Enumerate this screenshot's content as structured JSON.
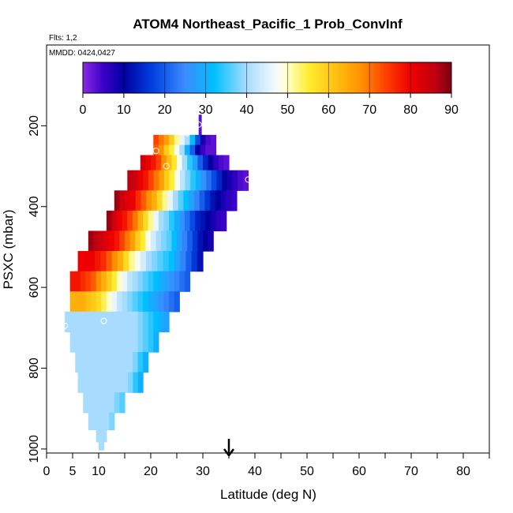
{
  "chart_data": {
    "type": "heatmap",
    "title": "ATOM4 Northeast_Pacific_1 Prob_ConvInf",
    "subtitle_left": "Flts: 1,2",
    "annotation": "MMDD: 0424,0427",
    "xlabel": "Latitude (deg N)",
    "ylabel": "PSXC (mbar)",
    "xlim": [
      0,
      85
    ],
    "ylim": [
      1010,
      0
    ],
    "x_ticks": [
      "0",
      "5",
      "10",
      "20",
      "30",
      "40",
      "50",
      "60",
      "70",
      "80"
    ],
    "x_tick_values": [
      0,
      5,
      10,
      20,
      30,
      40,
      50,
      60,
      70,
      80
    ],
    "x_minor_ticks": [
      15,
      25,
      35,
      45,
      55,
      65,
      75,
      85
    ],
    "y_ticks": [
      "200",
      "400",
      "600",
      "800",
      "1000"
    ],
    "y_tick_values": [
      200,
      400,
      600,
      800,
      1000
    ],
    "colorbar": {
      "range": [
        0,
        90
      ],
      "ticks": [
        "0",
        "10",
        "20",
        "30",
        "40",
        "50",
        "60",
        "70",
        "80",
        "90"
      ],
      "tick_values": [
        0,
        10,
        20,
        30,
        40,
        50,
        60,
        70,
        80,
        90
      ],
      "stops": [
        [
          0,
          "#8a2be2"
        ],
        [
          5,
          "#3a00c8"
        ],
        [
          10,
          "#0000a0"
        ],
        [
          17,
          "#0040e0"
        ],
        [
          25,
          "#3a8cff"
        ],
        [
          32,
          "#00bfff"
        ],
        [
          40,
          "#a8dcff"
        ],
        [
          47,
          "#f4faff"
        ],
        [
          50,
          "#ffffc8"
        ],
        [
          55,
          "#ffee33"
        ],
        [
          62,
          "#ffbe10"
        ],
        [
          68,
          "#ff9000"
        ],
        [
          74,
          "#ff4000"
        ],
        [
          80,
          "#ee0000"
        ],
        [
          86,
          "#c00010"
        ],
        [
          90,
          "#7a0010"
        ]
      ],
      "color_boundaries": [
        20,
        40,
        60,
        80
      ]
    },
    "rows": [
      {
        "p": 185,
        "lat": [
          29.2,
          29.7
        ],
        "values": [
          3,
          3
        ]
      },
      {
        "p": 210,
        "lat": [
          29.2,
          29.7
        ],
        "values": [
          3,
          3
        ]
      },
      {
        "p": 235,
        "lat": [
          20.5,
          32.5
        ],
        "values": [
          74,
          70,
          66,
          60,
          52,
          46,
          40,
          32,
          18,
          8,
          4,
          3
        ]
      },
      {
        "p": 260,
        "lat": [
          20.5,
          32.5
        ],
        "values": [
          72,
          68,
          60,
          55,
          48,
          40,
          30,
          20,
          10,
          5,
          3,
          3
        ]
      },
      {
        "p": 285,
        "lat": [
          18,
          35
        ],
        "values": [
          84,
          80,
          78,
          74,
          68,
          62,
          56,
          48,
          40,
          34,
          28,
          20,
          14,
          10,
          6,
          4,
          3
        ]
      },
      {
        "p": 335,
        "lat": [
          15.5,
          38.7
        ],
        "values": [
          86,
          84,
          80,
          78,
          74,
          70,
          66,
          60,
          55,
          48,
          42,
          38,
          34,
          30,
          26,
          22,
          18,
          14,
          10,
          8,
          6,
          4,
          3
        ]
      },
      {
        "p": 385,
        "lat": [
          13,
          36.5
        ],
        "values": [
          88,
          84,
          82,
          80,
          76,
          72,
          68,
          64,
          58,
          52,
          46,
          40,
          36,
          32,
          28,
          24,
          20,
          16,
          12,
          10,
          8,
          6,
          5
        ]
      },
      {
        "p": 435,
        "lat": [
          11.5,
          34.5
        ],
        "values": [
          88,
          84,
          80,
          78,
          74,
          70,
          64,
          58,
          52,
          46,
          40,
          38,
          34,
          30,
          26,
          22,
          18,
          14,
          12,
          10,
          8,
          6,
          5
        ]
      },
      {
        "p": 485,
        "lat": [
          8,
          32
        ],
        "values": [
          88,
          86,
          84,
          82,
          80,
          78,
          74,
          70,
          66,
          60,
          55,
          48,
          44,
          40,
          38,
          36,
          32,
          28,
          24,
          20,
          16,
          12,
          10,
          8
        ]
      },
      {
        "p": 535,
        "lat": [
          6,
          30
        ],
        "values": [
          80,
          80,
          80,
          78,
          76,
          72,
          68,
          64,
          58,
          52,
          48,
          44,
          40,
          38,
          36,
          34,
          32,
          28,
          24,
          20,
          16,
          12
        ]
      },
      {
        "p": 585,
        "lat": [
          4.5,
          27.5
        ],
        "values": [
          78,
          78,
          76,
          74,
          72,
          68,
          64,
          60,
          55,
          50,
          46,
          42,
          40,
          38,
          36,
          34,
          32,
          30,
          28,
          26,
          24,
          22,
          20
        ]
      },
      {
        "p": 635,
        "lat": [
          4.5,
          25.5
        ],
        "values": [
          64,
          64,
          64,
          62,
          60,
          58,
          54,
          50,
          46,
          42,
          40,
          38,
          36,
          34,
          32,
          30,
          28,
          26,
          24,
          22,
          20
        ]
      },
      {
        "p": 685,
        "lat": [
          3.5,
          23.5
        ],
        "values": [
          40,
          40,
          40,
          40,
          40,
          40,
          40,
          40,
          40,
          40,
          40,
          40,
          40,
          40,
          38,
          36,
          34,
          32,
          30,
          28
        ]
      },
      {
        "p": 735,
        "lat": [
          4.5,
          21.5
        ],
        "values": [
          40,
          40,
          40,
          40,
          40,
          40,
          40,
          40,
          40,
          40,
          40,
          40,
          40,
          38,
          36,
          34,
          30
        ]
      },
      {
        "p": 785,
        "lat": [
          5.5,
          19.5
        ],
        "values": [
          40,
          40,
          40,
          40,
          40,
          40,
          40,
          40,
          40,
          40,
          40,
          38,
          34,
          30
        ]
      },
      {
        "p": 835,
        "lat": [
          6,
          18.5
        ],
        "values": [
          40,
          40,
          40,
          40,
          40,
          40,
          40,
          40,
          40,
          40,
          38,
          34,
          30
        ]
      },
      {
        "p": 885,
        "lat": [
          7,
          15
        ],
        "values": [
          40,
          40,
          40,
          40,
          40,
          40,
          38,
          36
        ]
      },
      {
        "p": 935,
        "lat": [
          8,
          13
        ],
        "values": [
          40,
          40,
          40,
          40,
          38
        ]
      },
      {
        "p": 970,
        "lat": [
          9.5,
          11.5
        ],
        "values": [
          40,
          40
        ]
      },
      {
        "p": 995,
        "lat": [
          10,
          11
        ],
        "values": [
          40
        ]
      }
    ],
    "markers": [
      {
        "lat": 29.2,
        "p": 197
      },
      {
        "lat": 27,
        "p": 218
      },
      {
        "lat": 21,
        "p": 262
      },
      {
        "lat": 23,
        "p": 300
      },
      {
        "lat": 38.7,
        "p": 333
      },
      {
        "lat": 5,
        "p": 522
      },
      {
        "lat": 11,
        "p": 683
      },
      {
        "lat": 3.5,
        "p": 695
      }
    ],
    "arrow_lat": 35
  }
}
